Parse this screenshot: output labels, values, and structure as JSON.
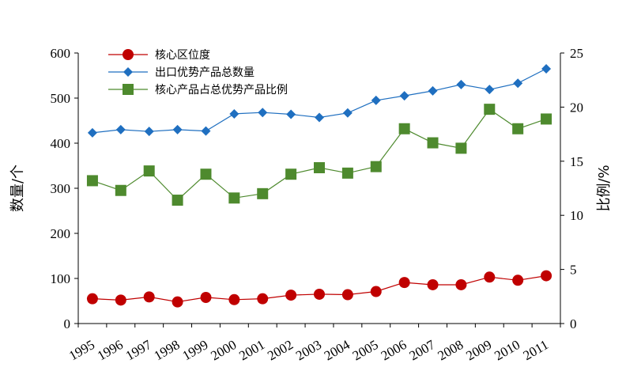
{
  "chart_data": {
    "type": "line",
    "title": "",
    "categories": [
      "1995",
      "1996",
      "1997",
      "1998",
      "1999",
      "2000",
      "2001",
      "2002",
      "2003",
      "2004",
      "2005",
      "2006",
      "2007",
      "2008",
      "2009",
      "2010",
      "2011"
    ],
    "ylabel_left": "数量/个",
    "ylabel_right": "比例/%",
    "ylim_left": [
      0,
      600
    ],
    "ylim_right": [
      0,
      25
    ],
    "yticks_left": [
      "0",
      "100",
      "200",
      "300",
      "400",
      "500",
      "600"
    ],
    "yticks_right": [
      "0",
      "5",
      "10",
      "15",
      "20",
      "25"
    ],
    "legend_position": "top-left",
    "grid": false,
    "series": [
      {
        "name": "核心区位度",
        "axis": "left",
        "marker": "circle",
        "color": "#c00000",
        "values": [
          55,
          52,
          59,
          48,
          58,
          53,
          55,
          63,
          65,
          64,
          71,
          91,
          86,
          86,
          103,
          96,
          106
        ]
      },
      {
        "name": "出口优势产品总数量",
        "axis": "left",
        "marker": "diamond",
        "color": "#1f6fc0",
        "values": [
          423,
          430,
          426,
          430,
          427,
          465,
          468,
          464,
          457,
          467,
          495,
          505,
          516,
          530,
          519,
          533,
          565
        ]
      },
      {
        "name": "核心产品占总优势产品比例",
        "axis": "right",
        "marker": "square",
        "color": "#4e8a2e",
        "values": [
          13.2,
          12.3,
          14.1,
          11.4,
          13.8,
          11.6,
          12.0,
          13.8,
          14.4,
          13.9,
          14.5,
          18.0,
          16.7,
          16.2,
          19.8,
          18.0,
          18.9
        ]
      }
    ]
  }
}
